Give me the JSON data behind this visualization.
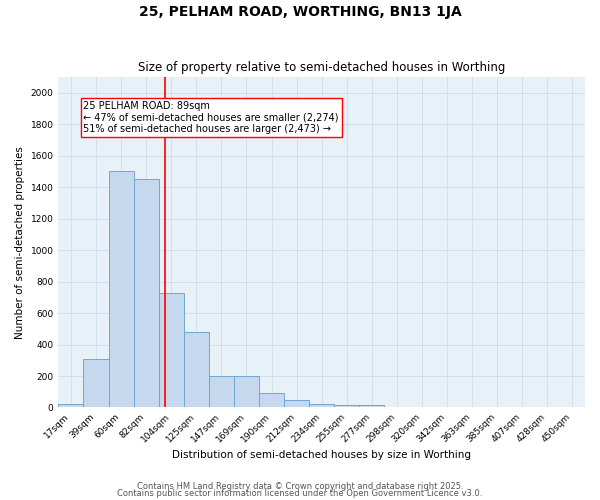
{
  "title": "25, PELHAM ROAD, WORTHING, BN13 1JA",
  "subtitle": "Size of property relative to semi-detached houses in Worthing",
  "xlabel": "Distribution of semi-detached houses by size in Worthing",
  "ylabel": "Number of semi-detached properties",
  "categories": [
    "17sqm",
    "39sqm",
    "60sqm",
    "82sqm",
    "104sqm",
    "125sqm",
    "147sqm",
    "169sqm",
    "190sqm",
    "212sqm",
    "234sqm",
    "255sqm",
    "277sqm",
    "298sqm",
    "320sqm",
    "342sqm",
    "363sqm",
    "385sqm",
    "407sqm",
    "428sqm",
    "450sqm"
  ],
  "values": [
    20,
    310,
    1500,
    1450,
    730,
    480,
    200,
    200,
    90,
    50,
    20,
    15,
    15,
    0,
    0,
    0,
    0,
    0,
    0,
    0,
    0
  ],
  "bar_color": "#c5d8ed",
  "bar_edge_color": "#6aaad4",
  "red_line_x": 3.75,
  "annotation_text": "25 PELHAM ROAD: 89sqm\n← 47% of semi-detached houses are smaller (2,274)\n51% of semi-detached houses are larger (2,473) →",
  "ylim": [
    0,
    2100
  ],
  "yticks": [
    0,
    200,
    400,
    600,
    800,
    1000,
    1200,
    1400,
    1600,
    1800,
    2000
  ],
  "footer1": "Contains HM Land Registry data © Crown copyright and database right 2025.",
  "footer2": "Contains public sector information licensed under the Open Government Licence v3.0.",
  "bg_color": "#e8f0f8",
  "grid_color": "#d0dce8",
  "title_fontsize": 10,
  "subtitle_fontsize": 8.5,
  "axis_label_fontsize": 7.5,
  "tick_fontsize": 6.5,
  "footer_fontsize": 6,
  "annot_fontsize": 7
}
